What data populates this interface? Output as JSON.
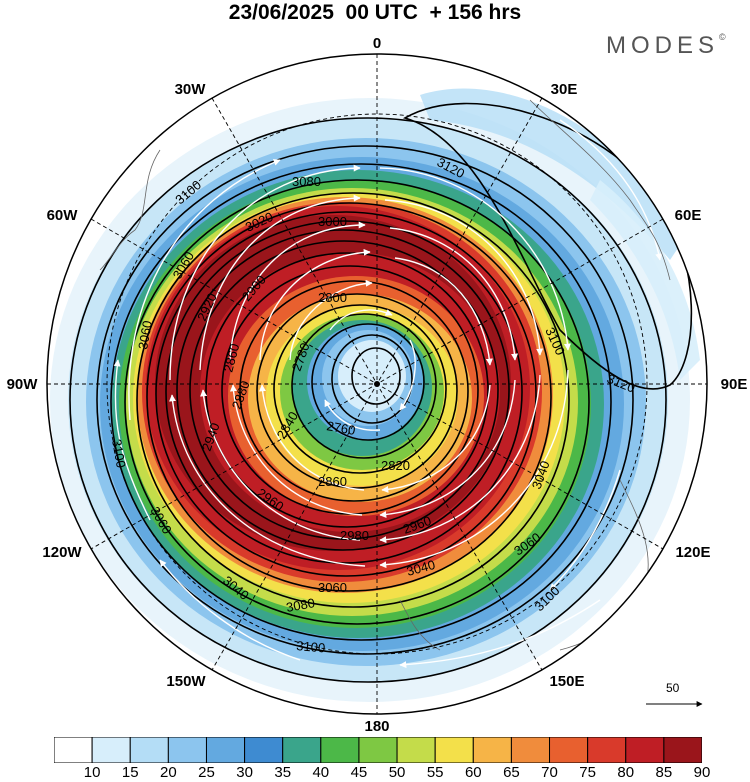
{
  "title": "23/06/2025  00 UTC  + 156 hrs",
  "brand": {
    "text": "MODES",
    "mark": "©"
  },
  "longitude_labels": {
    "top": "0",
    "top_right": "30E",
    "right_upper": "60E",
    "right": "90E",
    "right_lower": "120E",
    "bottom_right": "150E",
    "bottom": "180",
    "bottom_left": "150W",
    "left_lower": "120W",
    "left": "90W",
    "left_upper": "60W",
    "top_left": "30W"
  },
  "contour_labels": [
    "3120",
    "3100",
    "3080",
    "3060",
    "3040",
    "3020",
    "3000",
    "2980",
    "2960",
    "2940",
    "2920",
    "2900",
    "2880",
    "2860",
    "2840",
    "2820",
    "2800",
    "2780",
    "2760"
  ],
  "reference_vector": {
    "value": "50"
  },
  "colorbar": {
    "labels": [
      "10",
      "15",
      "20",
      "25",
      "30",
      "35",
      "40",
      "45",
      "50",
      "55",
      "60",
      "65",
      "70",
      "75",
      "80",
      "85",
      "90"
    ],
    "colors": [
      "#ffffff",
      "#d7eefb",
      "#b4ddf6",
      "#8cc5ee",
      "#63a9e0",
      "#3e8bd1",
      "#3aa58b",
      "#4cb848",
      "#7ec843",
      "#c4dc4a",
      "#f3e04a",
      "#f6b447",
      "#f08c3c",
      "#e8602f",
      "#d93a2b",
      "#bf1e25",
      "#9a151b"
    ]
  }
}
